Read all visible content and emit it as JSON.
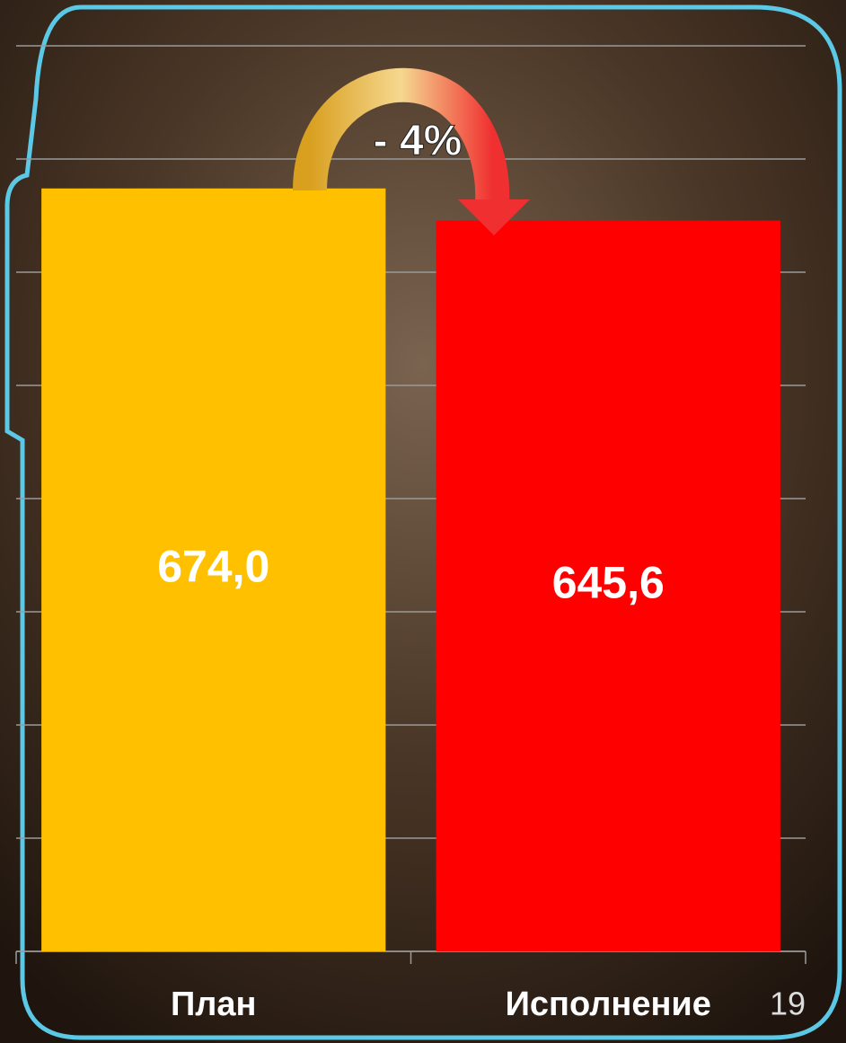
{
  "chart_data": {
    "type": "bar",
    "categories": [
      "План",
      "Исполнение"
    ],
    "series": [
      {
        "colors": [
          "#ffc000",
          "#ff0000"
        ],
        "values": [
          674.0,
          645.6
        ],
        "value_labels": [
          "674,0",
          "645,6"
        ]
      }
    ],
    "ylim": [
      0,
      800
    ],
    "yticks": [
      0,
      100,
      200,
      300,
      400,
      500,
      600,
      700,
      800
    ],
    "show_ytick_labels": false,
    "grid": true,
    "annotation": "- 4%",
    "page_number": "19"
  }
}
